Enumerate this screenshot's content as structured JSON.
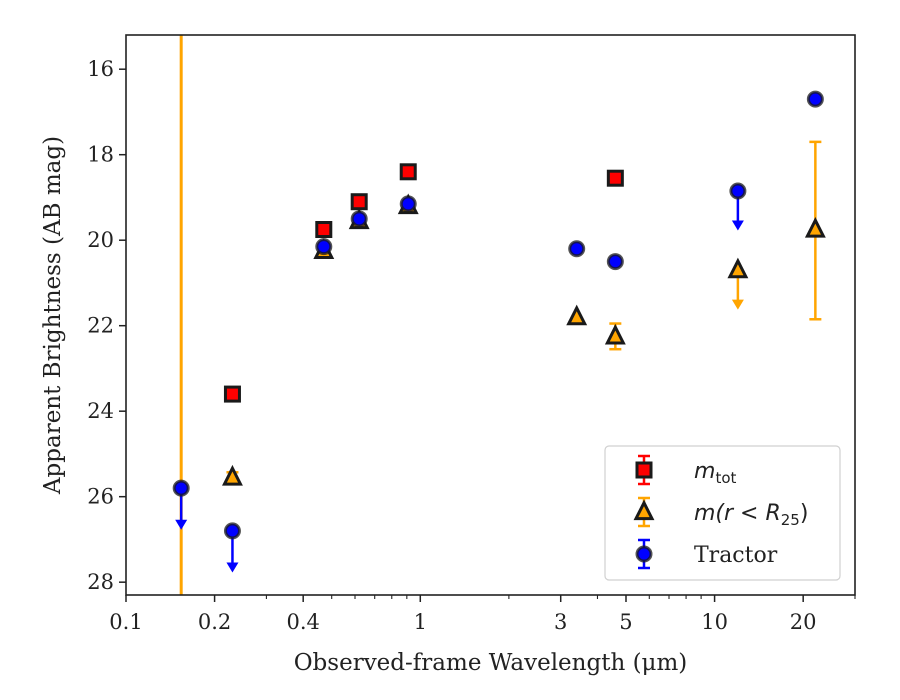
{
  "chart_data": {
    "type": "scatter",
    "xlabel": "Observed-frame Wavelength (μm)",
    "ylabel": "Apparent Brightness (AB mag)",
    "x_scale": "log",
    "xlim": [
      0.1,
      30
    ],
    "ylim": [
      28.3,
      15.2
    ],
    "y_inverted": true,
    "grid": false,
    "legend_position": "lower-right",
    "x_ticks": [
      {
        "value": 0.1,
        "label": "0.1"
      },
      {
        "value": 0.2,
        "label": "0.2"
      },
      {
        "value": 0.4,
        "label": "0.4"
      },
      {
        "value": 1,
        "label": "1"
      },
      {
        "value": 3,
        "label": "3"
      },
      {
        "value": 5,
        "label": "5"
      },
      {
        "value": 10,
        "label": "10"
      },
      {
        "value": 20,
        "label": "20"
      }
    ],
    "y_ticks": [
      {
        "value": 16,
        "label": "16"
      },
      {
        "value": 18,
        "label": "18"
      },
      {
        "value": 20,
        "label": "20"
      },
      {
        "value": 22,
        "label": "22"
      },
      {
        "value": 24,
        "label": "24"
      },
      {
        "value": 26,
        "label": "26"
      },
      {
        "value": 28,
        "label": "28"
      }
    ],
    "vertical_line": {
      "x": 0.154,
      "color": "#FFA500"
    },
    "series": [
      {
        "name": "m_tot",
        "legend_label": {
          "base": "m",
          "sub": "tot"
        },
        "marker": "square",
        "color": "#FF0000",
        "edge_color": "#1a1a1a",
        "points": [
          {
            "x": 0.23,
            "y": 23.6
          },
          {
            "x": 0.47,
            "y": 19.75
          },
          {
            "x": 0.62,
            "y": 19.1
          },
          {
            "x": 0.91,
            "y": 18.4
          },
          {
            "x": 4.6,
            "y": 18.55
          }
        ]
      },
      {
        "name": "m(r<R25)",
        "legend_label": {
          "base": "m(r < R",
          "sub": "25",
          "close": ")"
        },
        "marker": "triangle",
        "color": "#FFA500",
        "edge_color": "#1a1a1a",
        "points": [
          {
            "x": 0.23,
            "y": 25.55,
            "err": [
              0.12,
              0.12
            ]
          },
          {
            "x": 0.47,
            "y": 20.25
          },
          {
            "x": 0.62,
            "y": 19.55
          },
          {
            "x": 0.91,
            "y": 19.2
          },
          {
            "x": 3.4,
            "y": 21.8
          },
          {
            "x": 4.6,
            "y": 22.25,
            "err": [
              0.3,
              0.3
            ]
          },
          {
            "x": 12,
            "y": 20.7,
            "upper_limit": true,
            "arrow_to": 21.6
          },
          {
            "x": 22,
            "y": 19.75,
            "err": [
              2.05,
              2.1
            ]
          }
        ]
      },
      {
        "name": "Tractor",
        "legend_label": {
          "base": "Tractor"
        },
        "marker": "circle",
        "color": "#0000FF",
        "edge_color": "#1a1a1a",
        "points": [
          {
            "x": 0.154,
            "y": 25.8,
            "upper_limit": true,
            "arrow_to": 26.75
          },
          {
            "x": 0.23,
            "y": 26.8,
            "upper_limit": true,
            "arrow_to": 27.75
          },
          {
            "x": 0.47,
            "y": 20.15
          },
          {
            "x": 0.62,
            "y": 19.5
          },
          {
            "x": 0.91,
            "y": 19.15
          },
          {
            "x": 3.4,
            "y": 20.2
          },
          {
            "x": 4.6,
            "y": 20.5
          },
          {
            "x": 12,
            "y": 18.85,
            "upper_limit": true,
            "arrow_to": 19.75
          },
          {
            "x": 22,
            "y": 16.7
          }
        ]
      }
    ]
  }
}
